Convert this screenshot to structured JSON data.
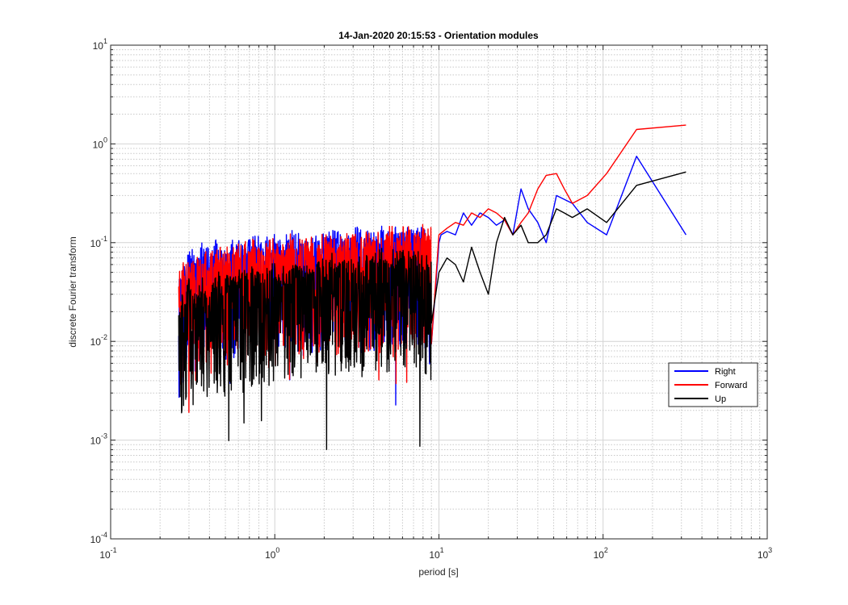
{
  "chart_data": {
    "type": "line",
    "title": "14-Jan-2020 20:15:53 - Orientation modules",
    "xlabel": "period [s]",
    "ylabel": "discrete Fourier transform",
    "x_scale": "log",
    "y_scale": "log",
    "xlim": [
      0.1,
      1000
    ],
    "ylim": [
      0.0001,
      10
    ],
    "grid": true,
    "minor_grid": true,
    "legend_position": "lower-right",
    "x_ticks": [
      {
        "base": "10",
        "exp": "-1",
        "value": 0.1
      },
      {
        "base": "10",
        "exp": "0",
        "value": 1
      },
      {
        "base": "10",
        "exp": "1",
        "value": 10
      },
      {
        "base": "10",
        "exp": "2",
        "value": 100
      },
      {
        "base": "10",
        "exp": "3",
        "value": 1000
      }
    ],
    "y_ticks": [
      {
        "base": "10",
        "exp": "-4",
        "value": 0.0001
      },
      {
        "base": "10",
        "exp": "-3",
        "value": 0.001
      },
      {
        "base": "10",
        "exp": "-2",
        "value": 0.01
      },
      {
        "base": "10",
        "exp": "-1",
        "value": 0.1
      },
      {
        "base": "10",
        "exp": "0",
        "value": 1
      },
      {
        "base": "10",
        "exp": "1",
        "value": 10
      }
    ],
    "series": [
      {
        "name": "Right",
        "color": "#0000ff",
        "x": [
          0.26,
          0.28,
          0.3,
          0.33,
          0.36,
          0.4,
          0.45,
          0.5,
          0.56,
          0.63,
          0.71,
          0.8,
          0.9,
          1.0,
          1.12,
          1.26,
          1.41,
          1.58,
          1.78,
          2.0,
          2.24,
          2.51,
          2.82,
          3.16,
          3.55,
          3.98,
          4.47,
          5.01,
          5.62,
          6.31,
          7.08,
          7.94,
          8.91,
          10.0,
          10.3,
          11.2,
          12.6,
          14.1,
          15.8,
          17.8,
          20.0,
          22.4,
          25.1,
          28.2,
          31.6,
          35.0,
          40.0,
          45.0,
          52.0,
          65.0,
          80.0,
          105.0,
          160.0,
          320.0
        ],
        "y": [
          0.04,
          0.06,
          0.08,
          0.07,
          0.09,
          0.08,
          0.1,
          0.09,
          0.1,
          0.09,
          0.1,
          0.11,
          0.1,
          0.11,
          0.1,
          0.12,
          0.11,
          0.1,
          0.12,
          0.11,
          0.13,
          0.12,
          0.11,
          0.13,
          0.12,
          0.12,
          0.13,
          0.12,
          0.13,
          0.14,
          0.12,
          0.13,
          0.12,
          0.1,
          0.12,
          0.13,
          0.12,
          0.2,
          0.15,
          0.2,
          0.18,
          0.15,
          0.17,
          0.12,
          0.35,
          0.22,
          0.16,
          0.1,
          0.3,
          0.25,
          0.16,
          0.12,
          0.75,
          0.12
        ]
      },
      {
        "name": "Forward",
        "color": "#ff0000",
        "x": [
          0.26,
          0.28,
          0.3,
          0.33,
          0.36,
          0.4,
          0.45,
          0.5,
          0.56,
          0.63,
          0.71,
          0.8,
          0.9,
          1.0,
          1.12,
          1.26,
          1.41,
          1.58,
          1.78,
          2.0,
          2.24,
          2.51,
          2.82,
          3.16,
          3.55,
          3.98,
          4.47,
          5.01,
          5.62,
          6.31,
          7.08,
          7.94,
          8.91,
          10.0,
          11.2,
          12.6,
          14.1,
          15.8,
          17.8,
          20.0,
          22.4,
          25.1,
          28.2,
          31.6,
          35.0,
          40.0,
          45.0,
          52.0,
          58.0,
          65.0,
          80.0,
          105.0,
          160.0,
          320.0
        ],
        "y": [
          0.05,
          0.06,
          0.07,
          0.06,
          0.08,
          0.07,
          0.08,
          0.09,
          0.08,
          0.09,
          0.1,
          0.09,
          0.1,
          0.1,
          0.09,
          0.11,
          0.1,
          0.11,
          0.1,
          0.12,
          0.11,
          0.1,
          0.12,
          0.11,
          0.12,
          0.11,
          0.12,
          0.13,
          0.12,
          0.14,
          0.12,
          0.15,
          0.13,
          0.12,
          0.14,
          0.16,
          0.15,
          0.2,
          0.18,
          0.22,
          0.2,
          0.17,
          0.12,
          0.16,
          0.2,
          0.35,
          0.48,
          0.5,
          0.35,
          0.25,
          0.3,
          0.5,
          1.4,
          1.55
        ]
      },
      {
        "name": "Up",
        "color": "#000000",
        "x": [
          0.26,
          0.28,
          0.3,
          0.33,
          0.36,
          0.4,
          0.45,
          0.5,
          0.56,
          0.63,
          0.71,
          0.8,
          0.9,
          1.0,
          1.12,
          1.26,
          1.41,
          1.58,
          1.78,
          2.0,
          2.24,
          2.51,
          2.82,
          3.16,
          3.55,
          3.98,
          4.47,
          5.01,
          5.62,
          6.31,
          7.08,
          7.94,
          8.91,
          10.0,
          11.2,
          12.6,
          14.1,
          15.8,
          17.8,
          20.0,
          22.4,
          25.1,
          28.2,
          31.6,
          35.0,
          40.0,
          45.0,
          52.0,
          58.0,
          65.0,
          80.0,
          105.0,
          160.0,
          320.0
        ],
        "y": [
          0.02,
          0.03,
          0.04,
          0.03,
          0.04,
          0.035,
          0.045,
          0.04,
          0.05,
          0.045,
          0.05,
          0.055,
          0.05,
          0.06,
          0.05,
          0.055,
          0.06,
          0.05,
          0.065,
          0.06,
          0.07,
          0.06,
          0.065,
          0.07,
          0.065,
          0.07,
          0.08,
          0.07,
          0.08,
          0.075,
          0.08,
          0.07,
          0.06,
          0.05,
          0.07,
          0.06,
          0.04,
          0.09,
          0.05,
          0.03,
          0.1,
          0.18,
          0.12,
          0.15,
          0.1,
          0.1,
          0.12,
          0.22,
          0.2,
          0.18,
          0.22,
          0.16,
          0.38,
          0.52
        ]
      }
    ],
    "noise_band": {
      "x_range": [
        0.26,
        9.0
      ],
      "seed": 12345
    }
  }
}
